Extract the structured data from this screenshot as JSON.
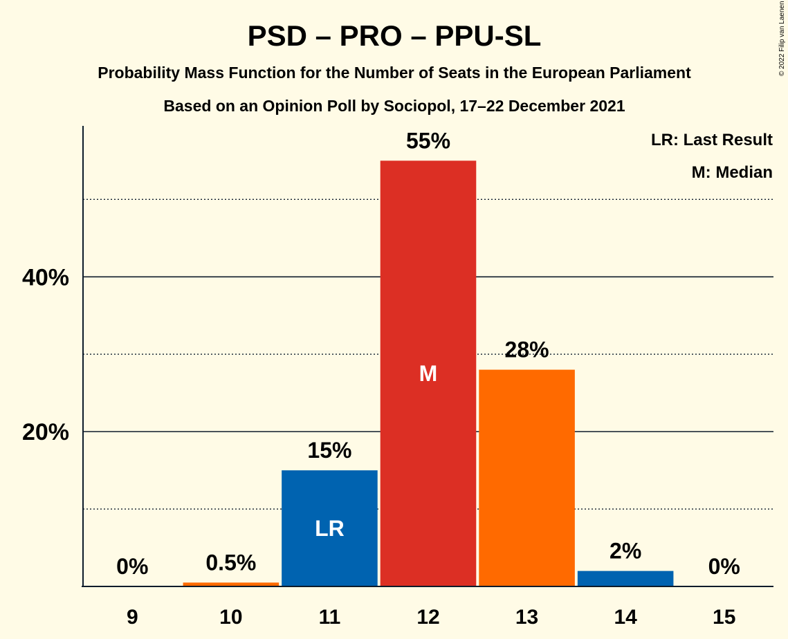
{
  "title": "PSD – PRO – PPU-SL",
  "subtitle1": "Probability Mass Function for the Number of Seats in the European Parliament",
  "subtitle2": "Based on an Opinion Poll by Sociopol, 17–22 December 2021",
  "copyright": "© 2022 Filip van Laenen",
  "legend": {
    "last_result": "LR: Last Result",
    "median": "M: Median"
  },
  "colors": {
    "background": "#fffbe6",
    "blue": "#0063b0",
    "red": "#dc2f24",
    "orange": "#ff6a00",
    "text": "#0d1b2a"
  },
  "chart_data": {
    "type": "bar",
    "categories": [
      "9",
      "10",
      "11",
      "12",
      "13",
      "14",
      "15"
    ],
    "values": [
      0,
      0.5,
      15,
      55,
      28,
      2,
      0
    ],
    "value_labels": [
      "0%",
      "0.5%",
      "15%",
      "55%",
      "28%",
      "2%",
      "0%"
    ],
    "bar_colors": [
      "#0063b0",
      "#ff6a00",
      "#0063b0",
      "#dc2f24",
      "#ff6a00",
      "#0063b0",
      "#ff6a00"
    ],
    "bar_markers": [
      "",
      "",
      "LR",
      "M",
      "",
      "",
      ""
    ],
    "ylim": [
      0,
      59.5
    ],
    "yticks": [
      20,
      40
    ],
    "ytick_labels": [
      "20%",
      "40%"
    ],
    "minor_gridlines": [
      10,
      30,
      50
    ],
    "grid": true,
    "legend_position": "top-right"
  }
}
